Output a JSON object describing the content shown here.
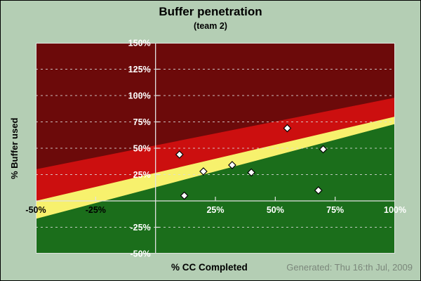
{
  "window": {
    "background_color": "#b4ceb4",
    "border_color": "#000000"
  },
  "chart_data": {
    "type": "scatter",
    "title": "Buffer penetration",
    "subtitle": "(team 2)",
    "xlabel": "% CC Completed",
    "ylabel": "% Buffer used",
    "footer": "Generated: Thu 16:th Jul, 2009",
    "xlim": [
      -50,
      100
    ],
    "ylim": [
      -50,
      150
    ],
    "grid": {
      "horizontal_step": 25,
      "style": "dashed",
      "color": "#dcdcdc"
    },
    "axis_line_color": "#e3e3e3",
    "x_ticks": [
      {
        "value": -50,
        "label": "-50%",
        "color": "#000000"
      },
      {
        "value": -25,
        "label": "-25%",
        "color": "#000000"
      },
      {
        "value": 25,
        "label": "25%",
        "color": "#ffffff"
      },
      {
        "value": 50,
        "label": "50%",
        "color": "#ffffff"
      },
      {
        "value": 75,
        "label": "75%",
        "color": "#ffffff"
      },
      {
        "value": 100,
        "label": "100%",
        "color": "#ffffff"
      }
    ],
    "y_ticks": [
      {
        "value": 150,
        "label": "150%",
        "color": "#ffffff"
      },
      {
        "value": 125,
        "label": "125%",
        "color": "#ffffff"
      },
      {
        "value": 100,
        "label": "100%",
        "color": "#ffffff"
      },
      {
        "value": 75,
        "label": "75%",
        "color": "#ffffff"
      },
      {
        "value": 50,
        "label": "50%",
        "color": "#ffffff"
      },
      {
        "value": 25,
        "label": "25%",
        "color": "#ffffff"
      },
      {
        "value": -25,
        "label": "-25%",
        "color": "#ffffff"
      },
      {
        "value": -50,
        "label": "-50%",
        "color": "#ffffff"
      }
    ],
    "zones": [
      {
        "name": "dark-red-critical",
        "color": "#6c0a0a",
        "boundary": null
      },
      {
        "name": "red-act",
        "color": "#cc0f0f",
        "boundary": {
          "y_at_xmin": 30,
          "y_at_xmax": 98
        }
      },
      {
        "name": "yellow-watch",
        "color": "#f7f16d",
        "boundary": {
          "y_at_xmin": 0,
          "y_at_xmax": 80
        }
      },
      {
        "name": "green-ok",
        "color": "#1b6e1b",
        "boundary": {
          "y_at_xmin": -17,
          "y_at_xmax": 73
        }
      }
    ],
    "points": [
      {
        "x": 10,
        "y": 44
      },
      {
        "x": 12,
        "y": 5
      },
      {
        "x": 20,
        "y": 28
      },
      {
        "x": 32,
        "y": 34
      },
      {
        "x": 40,
        "y": 27
      },
      {
        "x": 55,
        "y": 69
      },
      {
        "x": 68,
        "y": 10
      },
      {
        "x": 70,
        "y": 49
      }
    ],
    "marker": {
      "shape": "diamond",
      "fill": "#ffffff",
      "stroke": "#000000",
      "size": 10
    }
  }
}
